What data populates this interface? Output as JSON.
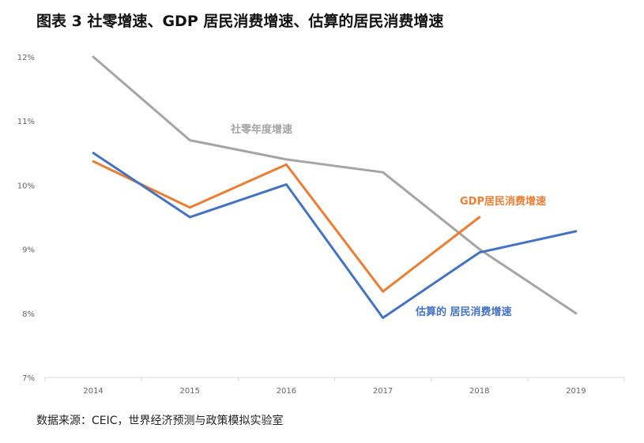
{
  "title": "图表 3   社零增速、GDP 居民消费增速、估算的居民消费增速",
  "source": "数据来源：CEIC，世界经济预测与政策模拟实验室",
  "chart_data": {
    "type": "line",
    "x": [
      "2014",
      "2015",
      "2016",
      "2017",
      "2018",
      "2019"
    ],
    "ylim": [
      7,
      12
    ],
    "yticks": [
      "7%",
      "8%",
      "9%",
      "10%",
      "11%",
      "12%"
    ],
    "grid": false,
    "series": [
      {
        "name": "社零年度增速",
        "color": "#A5A5A5",
        "values": [
          12.0,
          10.7,
          10.4,
          10.2,
          9.0,
          8.0
        ]
      },
      {
        "name": "GDP居民消费增速",
        "color": "#ED7D31",
        "values": [
          10.37,
          9.65,
          10.32,
          8.34,
          9.5,
          null
        ]
      },
      {
        "name": "估算的 居民消费增速",
        "color": "#4472C4",
        "values": [
          10.5,
          9.5,
          10.01,
          7.93,
          8.95,
          9.28
        ]
      }
    ]
  }
}
